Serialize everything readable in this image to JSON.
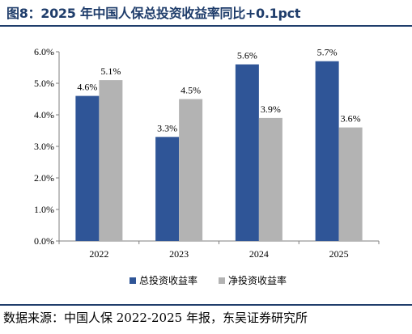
{
  "figure": {
    "title": "图8：2025 年中国人保总投资收益率同比+0.1pct",
    "source": "数据来源：中国人保 2022-2025 年报，东吴证券研究所"
  },
  "chart_data": {
    "type": "bar",
    "categories": [
      "2022",
      "2023",
      "2024",
      "2025"
    ],
    "series": [
      {
        "name": "总投资收益率",
        "values": [
          4.6,
          3.3,
          5.6,
          5.7
        ],
        "labels": [
          "4.6%",
          "3.3%",
          "5.6%",
          "5.7%"
        ],
        "color": "#2f5597"
      },
      {
        "name": "净投资收益率",
        "values": [
          5.1,
          4.5,
          3.9,
          3.6
        ],
        "labels": [
          "5.1%",
          "4.5%",
          "3.9%",
          "3.6%"
        ],
        "color": "#b3b3b3"
      }
    ],
    "yticks": [
      0,
      1,
      2,
      3,
      4,
      5,
      6
    ],
    "ytick_labels": [
      "0.0%",
      "1.0%",
      "2.0%",
      "3.0%",
      "4.0%",
      "5.0%",
      "6.0%"
    ],
    "ylim": [
      0,
      6
    ],
    "grid": false,
    "legend_position": "bottom"
  }
}
